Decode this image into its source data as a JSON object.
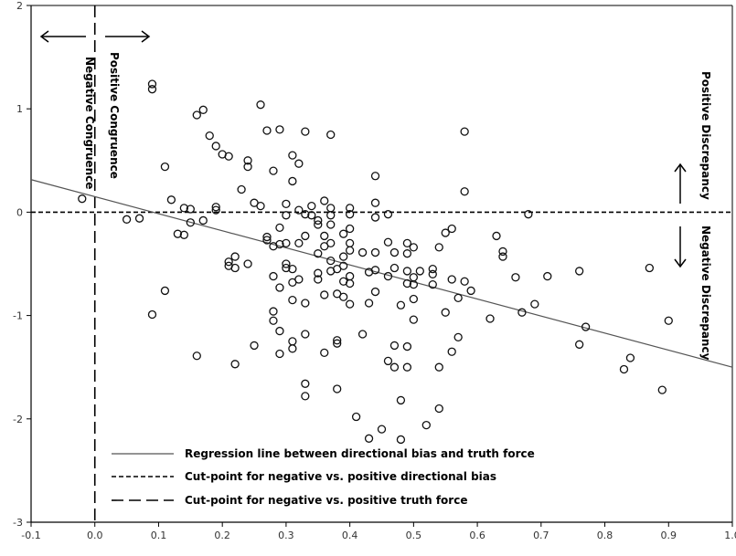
{
  "chart_data": {
    "type": "scatter",
    "xlim": [
      -0.1,
      1.0
    ],
    "ylim": [
      -3,
      2
    ],
    "x_ticks": [
      -0.1,
      0.0,
      0.1,
      0.2,
      0.3,
      0.4,
      0.5,
      0.6,
      0.7,
      0.8,
      0.9,
      1.0
    ],
    "x_tick_labels": [
      "-0.1",
      "0.0",
      "0.1",
      "0.2",
      "0.3",
      "0.4",
      "0.5",
      "0.6",
      "0.7",
      "0.8",
      "0.9",
      "1.0"
    ],
    "y_ticks": [
      -3,
      -2,
      -1,
      0,
      1,
      2
    ],
    "y_tick_labels": [
      "-3",
      "-2",
      "-1",
      "0",
      "1",
      "2"
    ],
    "grid": false,
    "regression_line": {
      "intercept": 0.15,
      "slope": -1.65
    },
    "horizontal_cutpoint_y": 0,
    "vertical_cutpoint_x": 0,
    "annotations": {
      "negative_congruence": "Negative Congruence",
      "positive_congruence": "Positive  Congruence",
      "positive_discrepancy": "Positive  Discrepancy",
      "negative_discrepancy": "Negative Discrepancy"
    },
    "legend": [
      {
        "style": "solid",
        "label": "Regression line between directional bias and truth force"
      },
      {
        "style": "short-dash",
        "label": "Cut-point for negative vs. positive directional bias"
      },
      {
        "style": "long-dash",
        "label": "Cut-point for negative vs. positive truth force"
      }
    ],
    "points": [
      [
        -0.02,
        0.13
      ],
      [
        0.05,
        -0.07
      ],
      [
        0.07,
        -0.06
      ],
      [
        0.09,
        1.24
      ],
      [
        0.09,
        1.19
      ],
      [
        0.09,
        -0.99
      ],
      [
        0.11,
        0.44
      ],
      [
        0.11,
        -0.76
      ],
      [
        0.12,
        0.12
      ],
      [
        0.13,
        -0.21
      ],
      [
        0.14,
        -0.22
      ],
      [
        0.14,
        0.04
      ],
      [
        0.15,
        0.03
      ],
      [
        0.15,
        -0.1
      ],
      [
        0.16,
        0.94
      ],
      [
        0.16,
        -1.39
      ],
      [
        0.17,
        0.99
      ],
      [
        0.17,
        -0.08
      ],
      [
        0.18,
        0.74
      ],
      [
        0.19,
        0.64
      ],
      [
        0.19,
        0.05
      ],
      [
        0.19,
        0.02
      ],
      [
        0.2,
        0.56
      ],
      [
        0.21,
        0.54
      ],
      [
        0.21,
        -0.48
      ],
      [
        0.21,
        -0.52
      ],
      [
        0.22,
        -0.43
      ],
      [
        0.22,
        -1.47
      ],
      [
        0.22,
        -0.54
      ],
      [
        0.23,
        0.22
      ],
      [
        0.24,
        0.44
      ],
      [
        0.24,
        0.5
      ],
      [
        0.24,
        -0.5
      ],
      [
        0.25,
        -1.29
      ],
      [
        0.25,
        0.09
      ],
      [
        0.26,
        1.04
      ],
      [
        0.26,
        0.06
      ],
      [
        0.27,
        0.79
      ],
      [
        0.27,
        -0.27
      ],
      [
        0.27,
        -0.24
      ],
      [
        0.28,
        0.4
      ],
      [
        0.28,
        -0.33
      ],
      [
        0.28,
        -0.62
      ],
      [
        0.28,
        -0.96
      ],
      [
        0.28,
        -1.05
      ],
      [
        0.29,
        0.8
      ],
      [
        0.29,
        -0.15
      ],
      [
        0.29,
        -0.31
      ],
      [
        0.29,
        -0.73
      ],
      [
        0.29,
        -1.15
      ],
      [
        0.29,
        -1.37
      ],
      [
        0.3,
        0.08
      ],
      [
        0.3,
        -0.5
      ],
      [
        0.3,
        -0.54
      ],
      [
        0.3,
        -0.3
      ],
      [
        0.3,
        -0.03
      ],
      [
        0.31,
        0.55
      ],
      [
        0.31,
        0.3
      ],
      [
        0.31,
        -0.55
      ],
      [
        0.31,
        -0.68
      ],
      [
        0.31,
        -0.85
      ],
      [
        0.31,
        -1.25
      ],
      [
        0.31,
        -1.32
      ],
      [
        0.32,
        0.47
      ],
      [
        0.32,
        0.02
      ],
      [
        0.32,
        -0.3
      ],
      [
        0.32,
        -0.65
      ],
      [
        0.33,
        0.78
      ],
      [
        0.33,
        -0.02
      ],
      [
        0.33,
        -0.23
      ],
      [
        0.33,
        -0.88
      ],
      [
        0.33,
        -1.18
      ],
      [
        0.33,
        -1.66
      ],
      [
        0.33,
        -1.78
      ],
      [
        0.34,
        0.06
      ],
      [
        0.34,
        -0.03
      ],
      [
        0.35,
        -0.08
      ],
      [
        0.35,
        -0.12
      ],
      [
        0.35,
        -0.4
      ],
      [
        0.35,
        -0.59
      ],
      [
        0.35,
        -0.65
      ],
      [
        0.36,
        0.11
      ],
      [
        0.36,
        -0.23
      ],
      [
        0.36,
        -0.33
      ],
      [
        0.36,
        -0.8
      ],
      [
        0.36,
        -1.36
      ],
      [
        0.37,
        0.75
      ],
      [
        0.37,
        0.04
      ],
      [
        0.37,
        -0.03
      ],
      [
        0.37,
        -0.12
      ],
      [
        0.37,
        -0.3
      ],
      [
        0.37,
        -0.47
      ],
      [
        0.37,
        -0.57
      ],
      [
        0.38,
        -0.55
      ],
      [
        0.38,
        -0.79
      ],
      [
        0.38,
        -1.24
      ],
      [
        0.38,
        -1.27
      ],
      [
        0.38,
        -1.71
      ],
      [
        0.39,
        -0.21
      ],
      [
        0.39,
        -0.43
      ],
      [
        0.39,
        -0.52
      ],
      [
        0.39,
        -0.67
      ],
      [
        0.39,
        -0.82
      ],
      [
        0.4,
        0.04
      ],
      [
        0.4,
        -0.02
      ],
      [
        0.4,
        -0.16
      ],
      [
        0.4,
        -0.3
      ],
      [
        0.4,
        -0.37
      ],
      [
        0.4,
        -0.62
      ],
      [
        0.4,
        -0.69
      ],
      [
        0.4,
        -0.89
      ],
      [
        0.41,
        -1.98
      ],
      [
        0.42,
        -1.18
      ],
      [
        0.42,
        -0.39
      ],
      [
        0.43,
        -0.58
      ],
      [
        0.43,
        -0.88
      ],
      [
        0.43,
        -2.19
      ],
      [
        0.44,
        0.35
      ],
      [
        0.44,
        0.09
      ],
      [
        0.44,
        -0.05
      ],
      [
        0.44,
        -0.39
      ],
      [
        0.44,
        -0.56
      ],
      [
        0.44,
        -0.77
      ],
      [
        0.45,
        -2.1
      ],
      [
        0.46,
        -0.02
      ],
      [
        0.46,
        -0.29
      ],
      [
        0.46,
        -0.62
      ],
      [
        0.46,
        -1.44
      ],
      [
        0.47,
        -0.39
      ],
      [
        0.47,
        -0.54
      ],
      [
        0.47,
        -1.29
      ],
      [
        0.47,
        -1.5
      ],
      [
        0.48,
        -1.82
      ],
      [
        0.48,
        -2.2
      ],
      [
        0.48,
        -0.9
      ],
      [
        0.49,
        -0.3
      ],
      [
        0.49,
        -0.4
      ],
      [
        0.49,
        -0.57
      ],
      [
        0.49,
        -0.69
      ],
      [
        0.49,
        -1.3
      ],
      [
        0.49,
        -1.5
      ],
      [
        0.5,
        -0.34
      ],
      [
        0.5,
        -0.63
      ],
      [
        0.5,
        -0.7
      ],
      [
        0.5,
        -0.84
      ],
      [
        0.5,
        -1.04
      ],
      [
        0.51,
        -0.57
      ],
      [
        0.52,
        -2.06
      ],
      [
        0.53,
        -0.55
      ],
      [
        0.53,
        -0.6
      ],
      [
        0.53,
        -0.7
      ],
      [
        0.54,
        -0.34
      ],
      [
        0.54,
        -1.5
      ],
      [
        0.54,
        -1.9
      ],
      [
        0.55,
        -0.2
      ],
      [
        0.55,
        -0.97
      ],
      [
        0.56,
        -0.16
      ],
      [
        0.56,
        -0.65
      ],
      [
        0.56,
        -1.35
      ],
      [
        0.57,
        -0.83
      ],
      [
        0.57,
        -1.21
      ],
      [
        0.58,
        0.78
      ],
      [
        0.58,
        0.2
      ],
      [
        0.58,
        -0.67
      ],
      [
        0.59,
        -0.76
      ],
      [
        0.62,
        -1.03
      ],
      [
        0.63,
        -0.23
      ],
      [
        0.64,
        -0.38
      ],
      [
        0.64,
        -0.43
      ],
      [
        0.66,
        -0.63
      ],
      [
        0.67,
        -0.97
      ],
      [
        0.68,
        -0.02
      ],
      [
        0.69,
        -0.89
      ],
      [
        0.71,
        -0.62
      ],
      [
        0.76,
        -1.28
      ],
      [
        0.76,
        -0.57
      ],
      [
        0.77,
        -1.11
      ],
      [
        0.83,
        -1.52
      ],
      [
        0.84,
        -1.41
      ],
      [
        0.87,
        -0.54
      ],
      [
        0.89,
        -1.72
      ],
      [
        0.9,
        -1.05
      ]
    ]
  }
}
